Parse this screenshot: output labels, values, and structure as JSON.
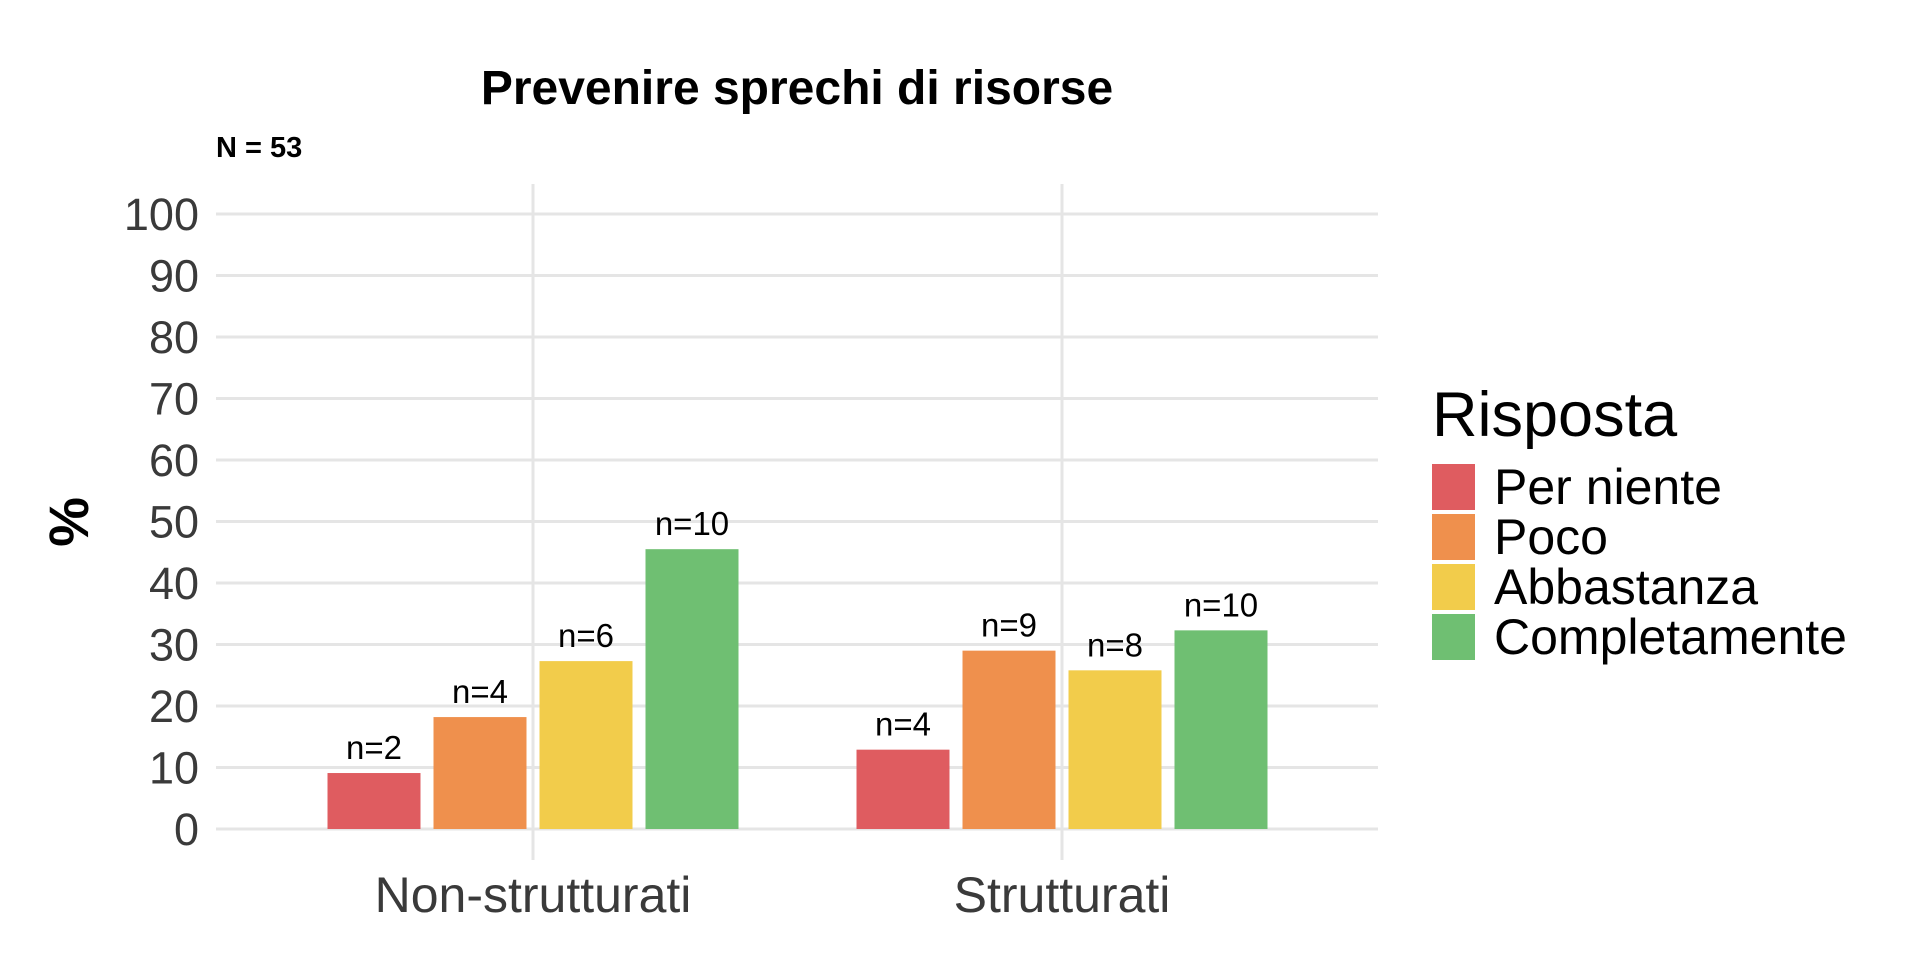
{
  "chart_data": {
    "type": "bar",
    "title": "Prevenire sprechi di risorse",
    "subtitle": "N = 53",
    "xlabel": "",
    "ylabel": "%",
    "ylim": [
      0,
      100
    ],
    "yticks": [
      0,
      10,
      20,
      30,
      40,
      50,
      60,
      70,
      80,
      90,
      100
    ],
    "grid": true,
    "legend_title": "Risposta",
    "legend_position": "right",
    "categories": [
      "Non-strutturati",
      "Strutturati"
    ],
    "series": [
      {
        "name": "Per niente",
        "color": "#DF5C60",
        "values": [
          9.1,
          12.9
        ],
        "labels": [
          "n=2",
          "n=4"
        ]
      },
      {
        "name": "Poco",
        "color": "#EF904D",
        "values": [
          18.2,
          29.0
        ],
        "labels": [
          "n=4",
          "n=9"
        ]
      },
      {
        "name": "Abbastanza",
        "color": "#F2CC4B",
        "values": [
          27.3,
          25.8
        ],
        "labels": [
          "n=6",
          "n=8"
        ]
      },
      {
        "name": "Completamente",
        "color": "#6FBF72",
        "values": [
          45.5,
          32.3
        ],
        "labels": [
          "n=10",
          "n=10"
        ]
      }
    ]
  }
}
